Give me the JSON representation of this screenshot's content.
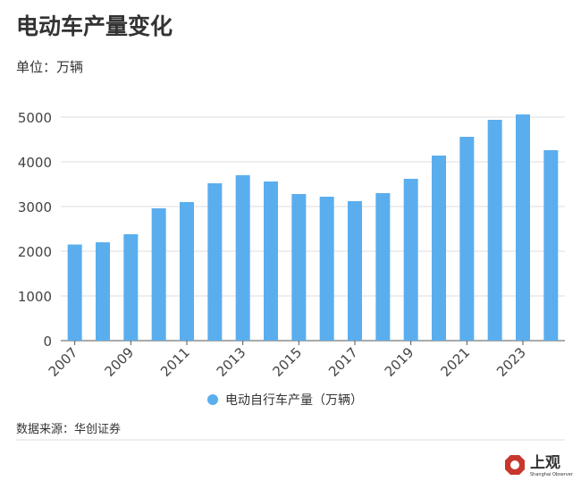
{
  "chart_data": {
    "type": "bar",
    "title": "电动车产量变化",
    "subtitle": "单位：万辆",
    "source": "数据来源：华创证券",
    "logo": {
      "name": "上观",
      "caption": "Shanghai Observer"
    },
    "categories": [
      "2007",
      null,
      "2009",
      null,
      "2011",
      null,
      "2013",
      null,
      "2015",
      null,
      "2017",
      null,
      "2019",
      null,
      "2021",
      null,
      "2023",
      null
    ],
    "series": [
      {
        "name": "电动自行车产量（万辆）",
        "color": "#5aaeee",
        "values": [
          2150,
          2200,
          2380,
          2960,
          3100,
          3520,
          3700,
          3560,
          3280,
          3220,
          3120,
          3300,
          3620,
          4140,
          4560,
          4940,
          5060,
          4260
        ]
      }
    ],
    "ylim": [
      0,
      5200
    ],
    "yticks": [
      0,
      1000,
      2000,
      3000,
      4000,
      5000
    ],
    "grid": true
  }
}
